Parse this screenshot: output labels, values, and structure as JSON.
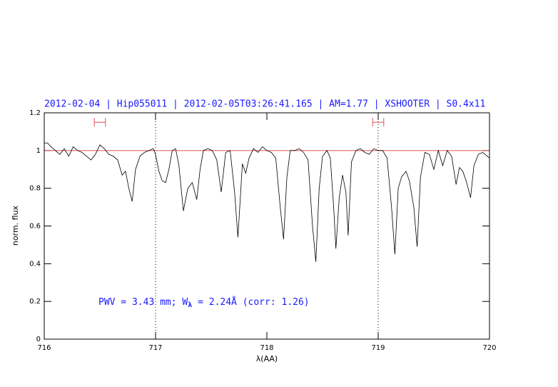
{
  "chart_data": {
    "type": "line",
    "title": "2012-02-04 | Hip055011 | 2012-02-05T03:26:41.165 | AM=1.77 | XSHOOTER | S0.4x11",
    "annotation": [
      "PWV = 3.43 mm; W",
      "λ",
      " = 2.24Å (corr: 1.26)"
    ],
    "xlabel": "λ(AA)",
    "ylabel": "norm. flux",
    "xlim": [
      716,
      720
    ],
    "ylim": [
      0,
      1.2
    ],
    "xticks": [
      716,
      717,
      718,
      719,
      720
    ],
    "yticks": [
      0,
      0.2,
      0.4,
      0.6,
      0.8,
      1,
      1.2
    ],
    "hline": 1,
    "hline_color": "#e05050",
    "vlines": [
      717,
      719
    ],
    "ranges": [
      [
        716.45,
        716.55
      ],
      [
        718.95,
        719.05
      ]
    ],
    "range_y": 1.15,
    "range_color": "#e05050",
    "color": "#000000",
    "x": [
      716.0,
      716.03,
      716.06,
      716.1,
      716.14,
      716.18,
      716.22,
      716.26,
      716.3,
      716.34,
      716.38,
      716.42,
      716.46,
      716.5,
      716.54,
      716.58,
      716.62,
      716.66,
      716.7,
      716.73,
      716.76,
      716.79,
      716.82,
      716.86,
      716.9,
      716.94,
      716.98,
      717.0,
      717.03,
      717.06,
      717.09,
      717.12,
      717.15,
      717.18,
      717.21,
      717.25,
      717.29,
      717.33,
      717.37,
      717.4,
      717.43,
      717.47,
      717.51,
      717.55,
      717.59,
      717.63,
      717.67,
      717.71,
      717.74,
      717.78,
      717.81,
      717.84,
      717.88,
      717.92,
      717.96,
      718.0,
      718.04,
      718.08,
      718.12,
      718.15,
      718.18,
      718.21,
      718.25,
      718.29,
      718.33,
      718.37,
      718.41,
      718.44,
      718.47,
      718.5,
      718.54,
      718.57,
      718.6,
      718.62,
      718.65,
      718.68,
      718.71,
      718.73,
      718.76,
      718.8,
      718.84,
      718.88,
      718.92,
      718.96,
      719.0,
      719.04,
      719.08,
      719.12,
      719.15,
      719.18,
      719.21,
      719.25,
      719.28,
      719.32,
      719.35,
      719.38,
      719.42,
      719.46,
      719.5,
      719.54,
      719.58,
      719.62,
      719.66,
      719.7,
      719.73,
      719.76,
      719.79,
      719.83,
      719.86,
      719.9,
      719.94,
      719.98,
      720.0
    ],
    "values": [
      1.04,
      1.04,
      1.02,
      1.0,
      0.98,
      1.01,
      0.97,
      1.02,
      1.0,
      0.99,
      0.97,
      0.95,
      0.98,
      1.03,
      1.01,
      0.98,
      0.97,
      0.95,
      0.87,
      0.89,
      0.8,
      0.73,
      0.9,
      0.97,
      0.99,
      1.0,
      1.01,
      0.98,
      0.89,
      0.84,
      0.83,
      0.9,
      1.0,
      1.01,
      0.92,
      0.68,
      0.8,
      0.83,
      0.74,
      0.9,
      1.0,
      1.01,
      1.0,
      0.95,
      0.78,
      0.99,
      1.0,
      0.78,
      0.54,
      0.93,
      0.88,
      0.96,
      1.01,
      0.99,
      1.02,
      1.0,
      0.99,
      0.96,
      0.7,
      0.53,
      0.86,
      1.0,
      1.0,
      1.01,
      0.99,
      0.95,
      0.6,
      0.41,
      0.8,
      0.97,
      1.0,
      0.96,
      0.7,
      0.48,
      0.75,
      0.87,
      0.78,
      0.55,
      0.94,
      1.0,
      1.01,
      0.99,
      0.98,
      1.01,
      1.0,
      1.0,
      0.96,
      0.7,
      0.45,
      0.8,
      0.86,
      0.89,
      0.84,
      0.7,
      0.49,
      0.86,
      0.99,
      0.98,
      0.9,
      1.0,
      0.92,
      1.0,
      0.97,
      0.82,
      0.91,
      0.89,
      0.84,
      0.75,
      0.92,
      0.98,
      0.99,
      0.97,
      0.96
    ]
  }
}
